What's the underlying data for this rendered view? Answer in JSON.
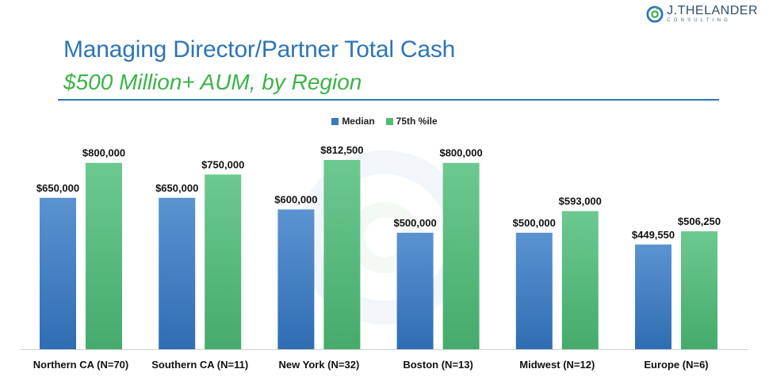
{
  "logo": {
    "name": "J.THELANDER",
    "tagline": "CONSULTING"
  },
  "colors": {
    "title": "#2e75b6",
    "subtitle": "#3db34a",
    "median": "#3b78c0",
    "p75": "#54b97a"
  },
  "chart_data": {
    "type": "bar",
    "title": "Managing Director/Partner Total Cash",
    "subtitle": "$500 Million+ AUM, by Region",
    "categories": [
      "Northern CA (N=70)",
      "Southern CA (N=11)",
      "New York (N=32)",
      "Boston (N=13)",
      "Midwest (N=12)",
      "Europe (N=6)"
    ],
    "series": [
      {
        "name": "Median",
        "values": [
          650000,
          650000,
          600000,
          500000,
          500000,
          449550
        ],
        "labels": [
          "$650,000",
          "$650,000",
          "$600,000",
          "$500,000",
          "$500,000",
          "$449,550"
        ]
      },
      {
        "name": "75th %ile",
        "values": [
          800000,
          750000,
          812500,
          800000,
          593000,
          506250
        ],
        "labels": [
          "$800,000",
          "$750,000",
          "$812,500",
          "$800,000",
          "$593,000",
          "$506,250"
        ]
      }
    ],
    "ylim": [
      0,
      812500
    ],
    "grid": false,
    "legend_position": "top-center"
  }
}
